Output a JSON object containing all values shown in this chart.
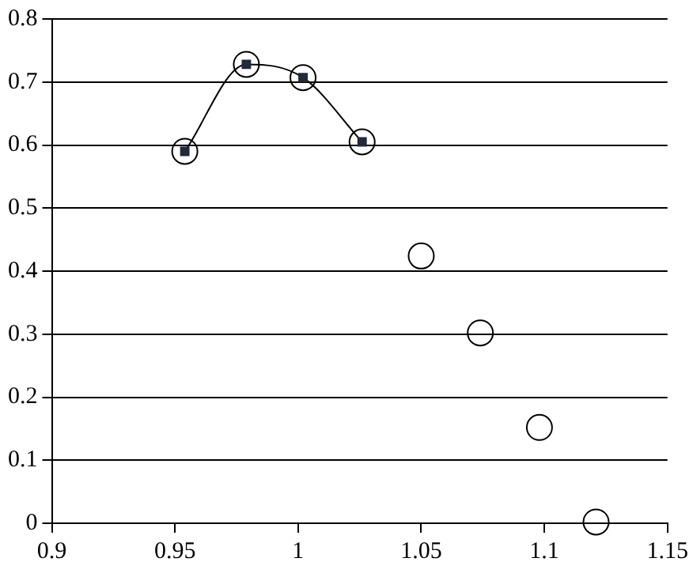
{
  "chart_data": {
    "type": "scatter",
    "xlim": [
      0.9,
      1.15
    ],
    "xticks": [
      0.9,
      0.95,
      1,
      1.05,
      1.1,
      1.15
    ],
    "ylim": [
      0,
      0.8
    ],
    "yticks": [
      0,
      0.1,
      0.2,
      0.3,
      0.4,
      0.5,
      0.6,
      0.7,
      0.8
    ],
    "grid": "y",
    "legend": false,
    "marker": "circle",
    "series": [
      {
        "color": "#000000",
        "x": [
          0.954,
          0.979,
          1.002,
          1.026,
          1.05,
          1.074,
          1.098,
          1.121
        ],
        "values": [
          0.59,
          0.728,
          0.707,
          0.605,
          0.424,
          0.302,
          0.152,
          0.002
        ]
      },
      {
        "type": "line",
        "color": "#1f2a3a",
        "marker": "square",
        "x": [
          0.954,
          0.979,
          1.002,
          1.026
        ],
        "values": [
          0.59,
          0.728,
          0.707,
          0.605
        ]
      }
    ]
  }
}
